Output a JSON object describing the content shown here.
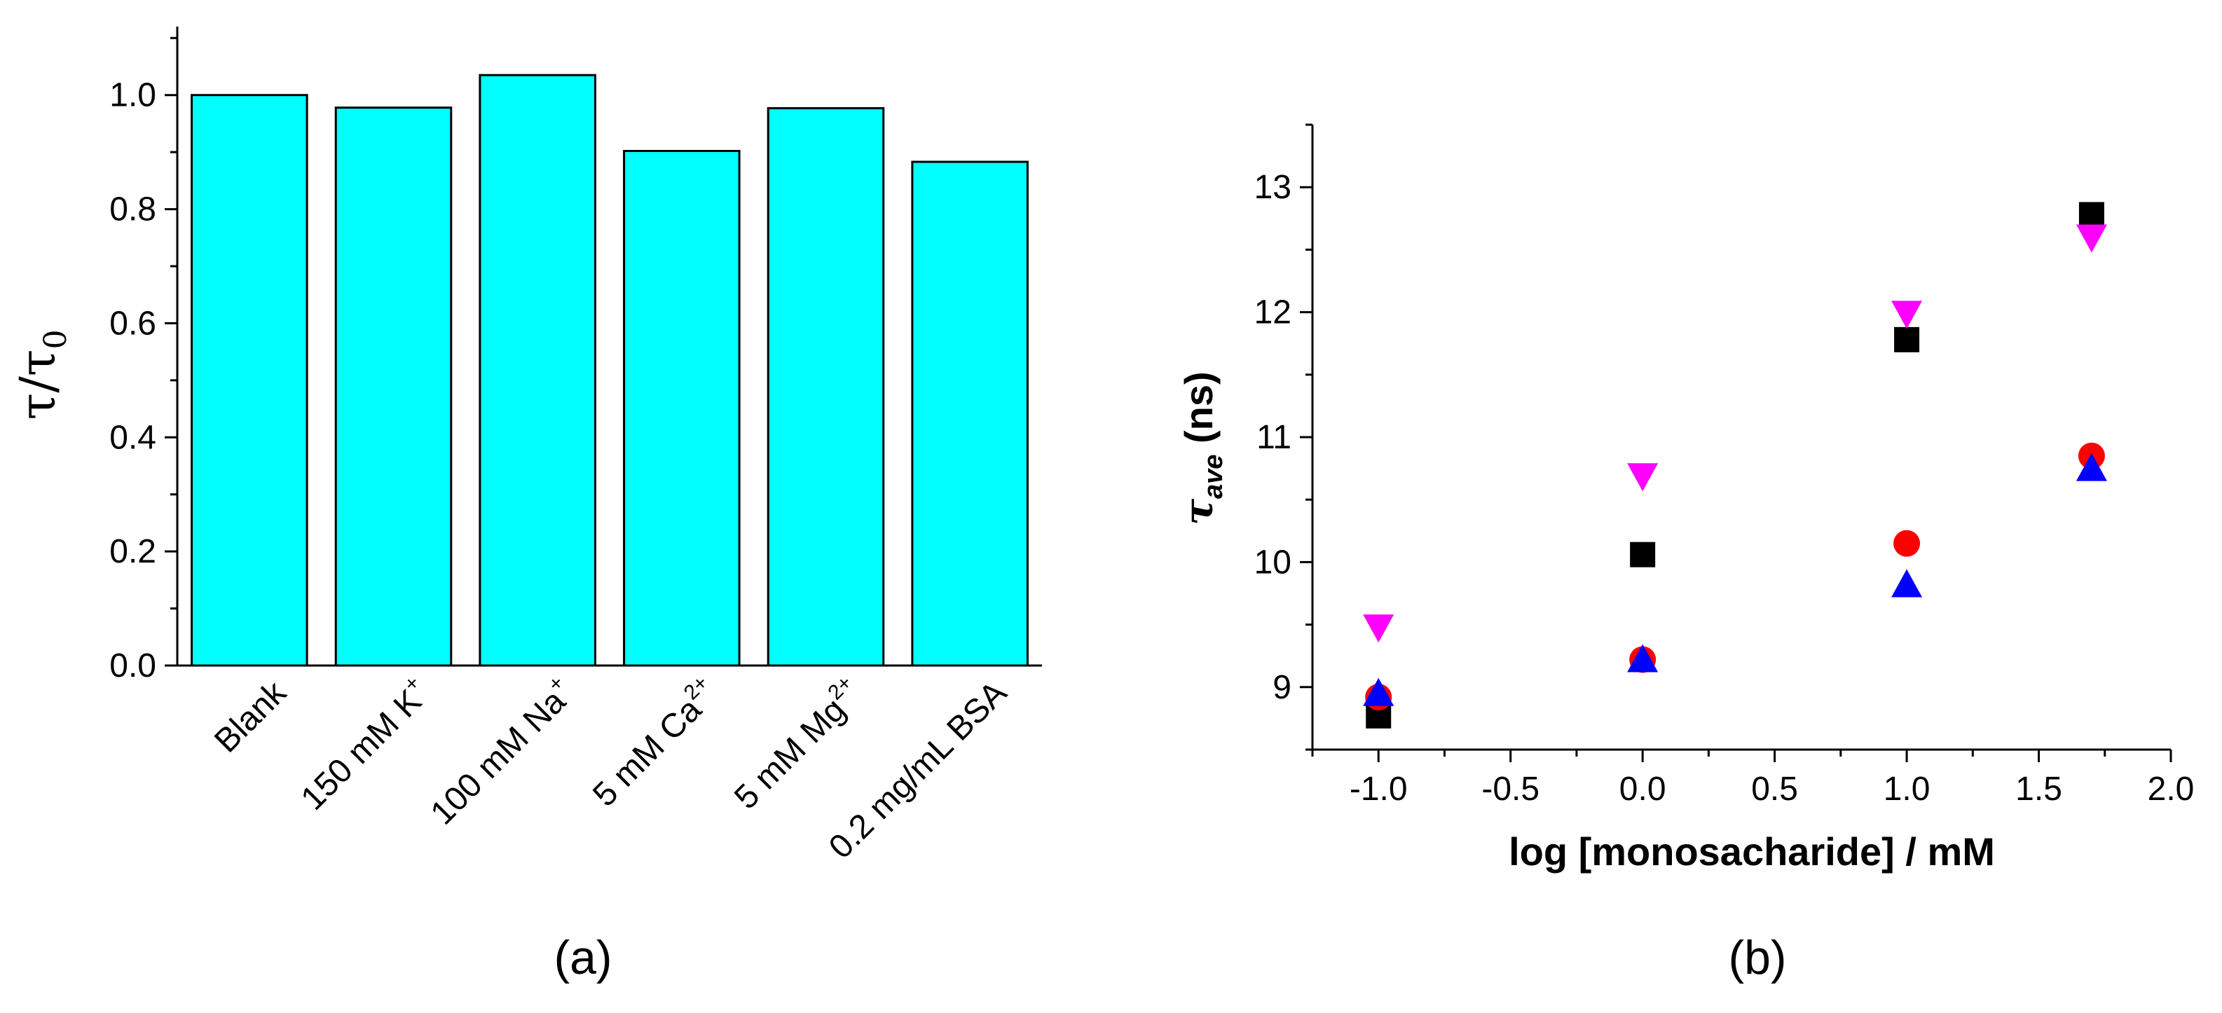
{
  "chart_data": [
    {
      "type": "bar",
      "panel_label": "(a)",
      "ylabel": "τ/τ",
      "ylabel_subscript": "0",
      "xlabel": "",
      "categories": [
        {
          "text": "Blank",
          "sup": ""
        },
        {
          "text": "150 mM K",
          "sup": "+"
        },
        {
          "text": "100 mM Na",
          "sup": "+"
        },
        {
          "text": "5 mM Ca",
          "sup": "2+"
        },
        {
          "text": "5 mM Mg",
          "sup": "2+"
        },
        {
          "text": "0.2 mg/mL BSA",
          "sup": ""
        }
      ],
      "values": [
        1.0,
        0.978,
        1.035,
        0.902,
        0.977,
        0.883
      ],
      "ylim": [
        0,
        1.12
      ],
      "yticks": [
        "0.0",
        "0.2",
        "0.4",
        "0.6",
        "0.8",
        "1.0"
      ],
      "bar_color": "#00ffff",
      "grid": false
    },
    {
      "type": "scatter",
      "panel_label": "(b)",
      "xlabel": "log [monosacharide] / mM",
      "ylabel": "τ",
      "ylabel_subscript": "ave",
      "ylabel_suffix": "(ns)",
      "xlim": [
        -1.25,
        2.0
      ],
      "ylim": [
        8.5,
        13.5
      ],
      "xticks": [
        "-1.0",
        "-0.5",
        "0.0",
        "0.5",
        "1.0",
        "1.5",
        "2.0"
      ],
      "yticks": [
        "9",
        "10",
        "11",
        "12",
        "13"
      ],
      "grid": false,
      "series": [
        {
          "marker": "square",
          "color": "#000000",
          "x": [
            -1,
            0,
            1,
            1.7
          ],
          "y": [
            8.77,
            10.06,
            11.78,
            12.78
          ]
        },
        {
          "marker": "circle",
          "color": "#ff0000",
          "x": [
            -1,
            0,
            1,
            1.7
          ],
          "y": [
            8.92,
            9.22,
            10.15,
            10.85
          ]
        },
        {
          "marker": "triangle-up",
          "color": "#0000ff",
          "x": [
            -1,
            0,
            1,
            1.7
          ],
          "y": [
            8.95,
            9.22,
            9.82,
            10.75
          ]
        },
        {
          "marker": "triangle-down",
          "color": "#ff00ff",
          "x": [
            -1,
            0,
            1,
            1.7
          ],
          "y": [
            9.48,
            10.69,
            11.99,
            12.6
          ]
        }
      ]
    }
  ]
}
